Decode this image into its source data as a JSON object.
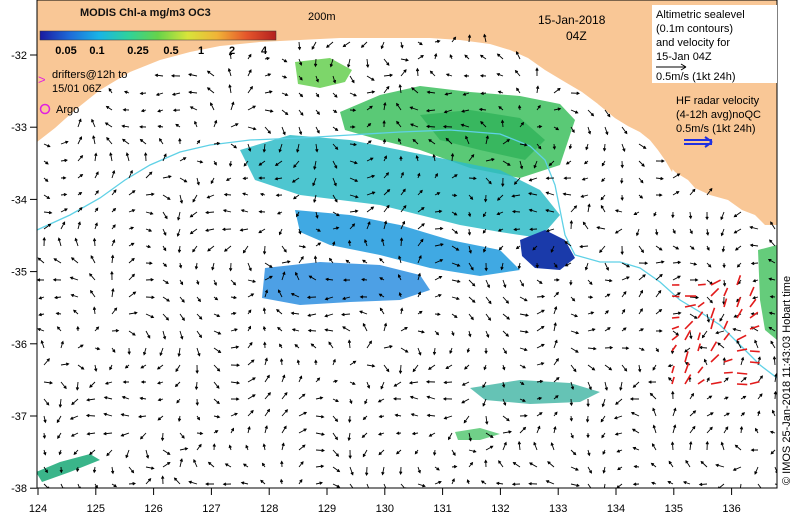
{
  "legend": {
    "title": "MODIS Chl-a mg/m3 OC3",
    "ticks": [
      "0.05",
      "0.1",
      "0.25",
      "0.5",
      "1",
      "2",
      "4"
    ],
    "colors": [
      "#1a1aa0",
      "#1e6ad8",
      "#19b4e6",
      "#2fd29b",
      "#66d34a",
      "#d8e43a",
      "#f0b437",
      "#e5562b",
      "#b3201f"
    ]
  },
  "isobath_label": "200m",
  "drifters_label": [
    "drifters@12h to",
    "15/01 06Z"
  ],
  "drifter_marker": ">",
  "argo_label": "Argo",
  "date_label": "15-Jan-2018",
  "time_label": "04Z",
  "altimetry_text": [
    "Altimetric sealevel",
    "(0.1m contours)",
    "and velocity for",
    "15-Jan 04Z",
    "0.5m/s (1kt 24h)"
  ],
  "hf_radar_text": [
    "HF radar velocity",
    "(4-12h avg)noQC",
    "0.5m/s (1kt 24h)"
  ],
  "credit": "© IMOS 25-Jan-2018 11:43:03 Hobart time",
  "x_ticks": [
    "124",
    "125",
    "126",
    "127",
    "128",
    "129",
    "130",
    "131",
    "132",
    "133",
    "134",
    "135",
    "136"
  ],
  "y_ticks": [
    "-32",
    "-33",
    "-34",
    "-35",
    "-36",
    "-37",
    "-38"
  ],
  "colors": {
    "land": "#f9c796",
    "ocean": "#ffffff",
    "isobath": "#5fd1e6",
    "drifter": "#e020e0",
    "hf_radar": "#e21b1b",
    "hf_radar_key": "#2030e0",
    "arrow": "#000000"
  }
}
